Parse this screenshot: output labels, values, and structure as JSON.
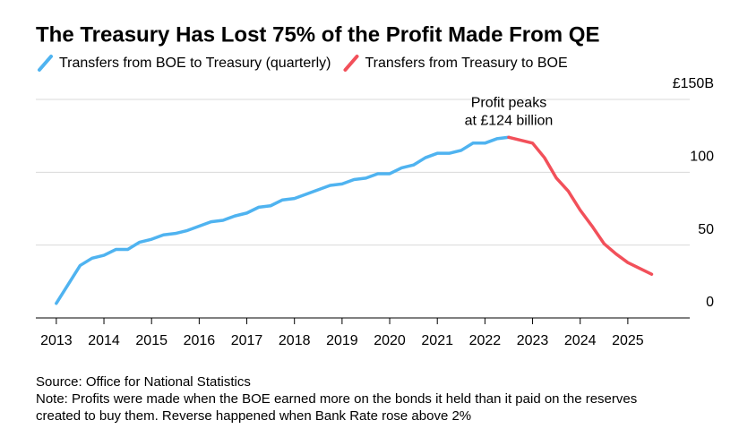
{
  "chart_data": {
    "type": "line",
    "title": "The Treasury Has Lost 75% of the Profit Made From QE",
    "series": [
      {
        "name": "Transfers from BOE to Treasury (quarterly)",
        "color": "#4fb3f0",
        "x": [
          2013,
          2013.25,
          2013.5,
          2013.75,
          2014,
          2014.25,
          2014.5,
          2014.75,
          2015,
          2015.25,
          2015.5,
          2015.75,
          2016,
          2016.25,
          2016.5,
          2016.75,
          2017,
          2017.25,
          2017.5,
          2017.75,
          2018,
          2018.25,
          2018.5,
          2018.75,
          2019,
          2019.25,
          2019.5,
          2019.75,
          2020,
          2020.25,
          2020.5,
          2020.75,
          2021,
          2021.25,
          2021.5,
          2021.75,
          2022,
          2022.25,
          2022.5
        ],
        "values": [
          10,
          23,
          36,
          41,
          43,
          47,
          47,
          52,
          54,
          57,
          58,
          60,
          63,
          66,
          67,
          70,
          72,
          76,
          77,
          81,
          82,
          85,
          88,
          91,
          92,
          95,
          96,
          99,
          99,
          103,
          105,
          110,
          113,
          113,
          115,
          120,
          120,
          123,
          124
        ]
      },
      {
        "name": "Transfers from Treasury to BOE",
        "color": "#f2505a",
        "x": [
          2022.5,
          2022.75,
          2023,
          2023.25,
          2023.5,
          2023.75,
          2024,
          2024.25,
          2024.5,
          2024.75,
          2025,
          2025.25,
          2025.5
        ],
        "values": [
          124,
          122,
          120,
          110,
          96,
          87,
          74,
          63,
          51,
          44,
          38,
          34,
          30
        ]
      }
    ],
    "xlim": [
      2012.57,
      2026.3
    ],
    "xticks": [
      2013,
      2014,
      2015,
      2016,
      2017,
      2018,
      2019,
      2020,
      2021,
      2022,
      2023,
      2024,
      2025
    ],
    "ylim": [
      0,
      150
    ],
    "yticks": [
      0,
      50,
      100,
      {
        "value": 150,
        "label": "£150B"
      }
    ],
    "grid": true,
    "annotation": {
      "lines": [
        "Profit peaks",
        "at £124 billion"
      ],
      "x": 2022.5,
      "y": 124
    },
    "source": "Source: Office for National Statistics",
    "note": [
      "Note: Profits were made when the BOE earned more on the bonds it held than it paid on the reserves",
      "created to buy them. Reverse happened when Bank Rate rose above 2%"
    ]
  }
}
